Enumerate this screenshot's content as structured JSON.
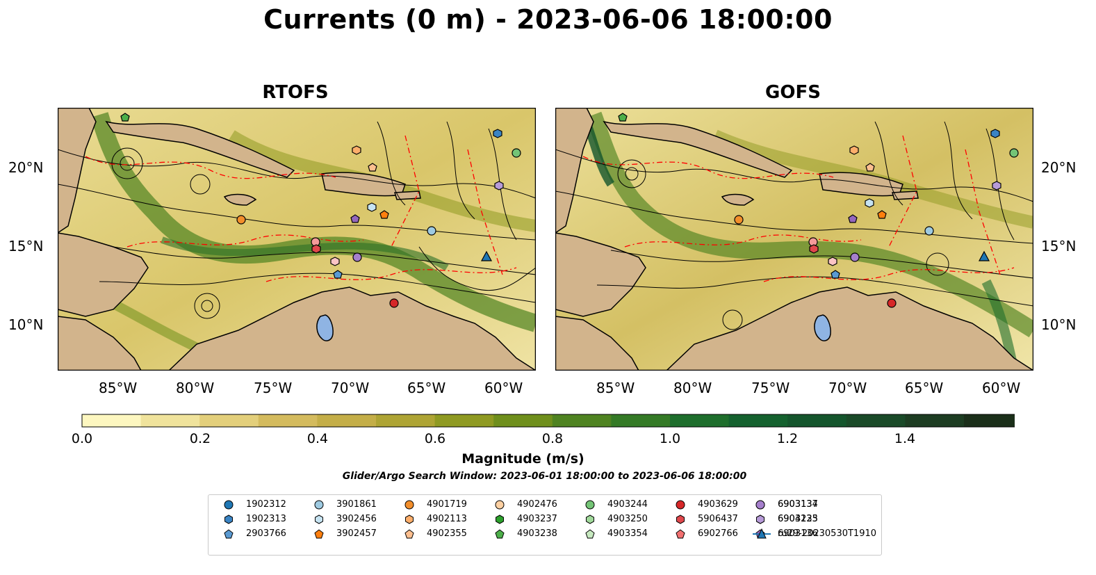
{
  "title": "Currents (0 m) - 2023-06-06 18:00:00",
  "panels": [
    {
      "title": "RTOFS"
    },
    {
      "title": "GOFS"
    }
  ],
  "axes": {
    "lat_ticks": [
      "20°N",
      "15°N",
      "10°N"
    ],
    "lon_ticks": [
      "85°W",
      "80°W",
      "75°W",
      "70°W",
      "65°W",
      "60°W"
    ]
  },
  "colorbar": {
    "label": "Magnitude (m/s)",
    "ticks": [
      "0.0",
      "0.2",
      "0.4",
      "0.6",
      "0.8",
      "1.0",
      "1.2",
      "1.4"
    ],
    "colors": [
      "#fdf7c0",
      "#f0e39c",
      "#e3cf7b",
      "#d4bb5e",
      "#c4ae48",
      "#aea434",
      "#8f9a22",
      "#6f8f1c",
      "#4f8321",
      "#347a26",
      "#1e6e2c",
      "#14612e",
      "#14552c",
      "#1a4a28",
      "#1d3d22",
      "#1b2f1a"
    ]
  },
  "search_window": "Glider/Argo Search Window: 2023-06-01 18:00:00 to 2023-06-06 18:00:00",
  "legend": [
    {
      "label": "1902312",
      "marker": "circle",
      "color": "#1f77b4"
    },
    {
      "label": "1902313",
      "marker": "hexagon",
      "color": "#3a84c4"
    },
    {
      "label": "2903766",
      "marker": "pentagon",
      "color": "#5a9ad2"
    },
    {
      "label": "3901861",
      "marker": "circle",
      "color": "#9ecae1"
    },
    {
      "label": "3902456",
      "marker": "hexagon",
      "color": "#c6e3f2"
    },
    {
      "label": "3902457",
      "marker": "pentagon",
      "color": "#ff7f0e"
    },
    {
      "label": "4901719",
      "marker": "circle",
      "color": "#f28e2b"
    },
    {
      "label": "4902113",
      "marker": "hexagon",
      "color": "#fdae6b"
    },
    {
      "label": "4902355",
      "marker": "pentagon",
      "color": "#fdbf8f"
    },
    {
      "label": "4902476",
      "marker": "circle",
      "color": "#fdd0a2"
    },
    {
      "label": "4903237",
      "marker": "hexagon",
      "color": "#2ca02c"
    },
    {
      "label": "4903238",
      "marker": "pentagon",
      "color": "#4daf4a"
    },
    {
      "label": "4903244",
      "marker": "circle",
      "color": "#74c476"
    },
    {
      "label": "4903250",
      "marker": "hexagon",
      "color": "#a1d99b"
    },
    {
      "label": "4903354",
      "marker": "pentagon",
      "color": "#c7e9c0"
    },
    {
      "label": "4903629",
      "marker": "circle",
      "color": "#d62728"
    },
    {
      "label": "5906437",
      "marker": "hexagon",
      "color": "#e0474c"
    },
    {
      "label": "6902766",
      "marker": "pentagon",
      "color": "#f27070"
    },
    {
      "label": "6903134",
      "marker": "circle",
      "color": "#f49a9a"
    },
    {
      "label": "6903135",
      "marker": "hexagon",
      "color": "#fbc4c4"
    },
    {
      "label": "6903136",
      "marker": "pentagon",
      "color": "#9467bd"
    },
    {
      "label": "6903137",
      "marker": "circle",
      "color": "#a57fcc"
    },
    {
      "label": "6904223",
      "marker": "hexagon",
      "color": "#b79bd8"
    },
    {
      "label": "ru29-20230530T1910",
      "marker": "triangle-line",
      "color": "#1f77b4"
    }
  ]
}
